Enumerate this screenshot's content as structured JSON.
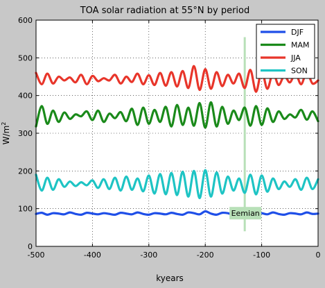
{
  "chart_data": {
    "type": "line",
    "title": "TOA solar radiation at 55°N by period",
    "xlabel": "kyears",
    "ylabel": "W/m",
    "ylabel_sup": "2",
    "xlim": [
      -500,
      0
    ],
    "ylim": [
      0,
      600
    ],
    "xticks": [
      -500,
      -400,
      -300,
      -200,
      -100,
      0
    ],
    "yticks": [
      0,
      100,
      200,
      300,
      400,
      500,
      600
    ],
    "grid": true,
    "legend_position": "top-right",
    "series": [
      {
        "name": "DJF",
        "color": "#1f4fe8",
        "x": [
          -500,
          -490,
          -480,
          -470,
          -460,
          -450,
          -440,
          -430,
          -420,
          -410,
          -400,
          -390,
          -380,
          -370,
          -360,
          -350,
          -340,
          -330,
          -320,
          -310,
          -300,
          -290,
          -280,
          -270,
          -260,
          -250,
          -240,
          -230,
          -220,
          -210,
          -200,
          -190,
          -180,
          -170,
          -160,
          -150,
          -140,
          -130,
          -120,
          -110,
          -100,
          -90,
          -80,
          -70,
          -60,
          -50,
          -40,
          -30,
          -20,
          -10,
          0
        ],
        "values": [
          86,
          89,
          84,
          88,
          87,
          85,
          90,
          86,
          84,
          89,
          87,
          85,
          88,
          86,
          84,
          89,
          87,
          85,
          90,
          86,
          84,
          88,
          87,
          85,
          89,
          86,
          84,
          90,
          88,
          85,
          93,
          87,
          84,
          89,
          88,
          84,
          91,
          86,
          84,
          89,
          88,
          85,
          90,
          86,
          84,
          88,
          87,
          85,
          90,
          86,
          87
        ]
      },
      {
        "name": "MAM",
        "color": "#1a8a1a",
        "x": [
          -500,
          -490,
          -480,
          -470,
          -460,
          -450,
          -440,
          -430,
          -420,
          -410,
          -400,
          -390,
          -380,
          -370,
          -360,
          -350,
          -340,
          -330,
          -320,
          -310,
          -300,
          -290,
          -280,
          -270,
          -260,
          -250,
          -240,
          -230,
          -220,
          -210,
          -200,
          -190,
          -180,
          -170,
          -160,
          -150,
          -140,
          -130,
          -120,
          -110,
          -100,
          -90,
          -80,
          -70,
          -60,
          -50,
          -40,
          -30,
          -20,
          -10,
          0
        ],
        "values": [
          318,
          372,
          325,
          360,
          330,
          355,
          338,
          350,
          345,
          358,
          335,
          360,
          330,
          352,
          340,
          356,
          332,
          365,
          322,
          368,
          325,
          362,
          330,
          370,
          318,
          375,
          322,
          368,
          320,
          380,
          315,
          382,
          318,
          370,
          325,
          360,
          335,
          368,
          320,
          372,
          322,
          366,
          330,
          358,
          338,
          350,
          342,
          362,
          336,
          358,
          332
        ]
      },
      {
        "name": "JJA",
        "color": "#e8352a",
        "x": [
          -500,
          -490,
          -480,
          -470,
          -460,
          -450,
          -440,
          -430,
          -420,
          -410,
          -400,
          -390,
          -380,
          -370,
          -360,
          -350,
          -340,
          -330,
          -320,
          -310,
          -300,
          -290,
          -280,
          -270,
          -260,
          -250,
          -240,
          -230,
          -220,
          -210,
          -200,
          -190,
          -180,
          -170,
          -160,
          -150,
          -140,
          -130,
          -120,
          -110,
          -100,
          -90,
          -80,
          -70,
          -60,
          -50,
          -40,
          -30,
          -20,
          -10,
          0
        ],
        "values": [
          460,
          430,
          458,
          432,
          450,
          440,
          448,
          435,
          455,
          430,
          452,
          438,
          446,
          440,
          455,
          432,
          450,
          436,
          458,
          430,
          454,
          428,
          460,
          426,
          462,
          424,
          465,
          420,
          478,
          415,
          470,
          418,
          462,
          425,
          455,
          432,
          458,
          420,
          468,
          410,
          465,
          418,
          460,
          428,
          452,
          435,
          458,
          430,
          462,
          432,
          440
        ]
      },
      {
        "name": "SON",
        "color": "#1ec4c4",
        "x": [
          -500,
          -490,
          -480,
          -470,
          -460,
          -450,
          -440,
          -430,
          -420,
          -410,
          -400,
          -390,
          -380,
          -370,
          -360,
          -350,
          -340,
          -330,
          -320,
          -310,
          -300,
          -290,
          -280,
          -270,
          -260,
          -250,
          -240,
          -230,
          -220,
          -210,
          -200,
          -190,
          -180,
          -170,
          -160,
          -150,
          -140,
          -130,
          -120,
          -110,
          -100,
          -90,
          -80,
          -70,
          -60,
          -50,
          -40,
          -30,
          -20,
          -10,
          0
        ],
        "values": [
          190,
          148,
          182,
          150,
          178,
          158,
          172,
          160,
          170,
          162,
          175,
          155,
          178,
          152,
          182,
          148,
          185,
          150,
          180,
          146,
          188,
          140,
          192,
          138,
          195,
          136,
          198,
          132,
          200,
          128,
          202,
          132,
          196,
          140,
          185,
          148,
          180,
          142,
          190,
          138,
          188,
          145,
          180,
          152,
          172,
          158,
          178,
          150,
          182,
          152,
          178
        ]
      }
    ],
    "annotations": [
      {
        "text": "Eemian",
        "x": -130,
        "y_range": [
          40,
          555
        ],
        "color": "#b8e0b8"
      }
    ]
  }
}
